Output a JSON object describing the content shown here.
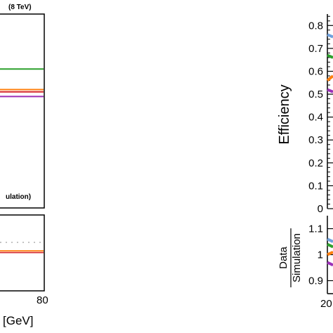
{
  "chart_data": [
    {
      "type": "line",
      "panel": "left-upper",
      "annotation_energy": "(8 TeV)",
      "annotation_sim": "ulation)",
      "series": [
        {
          "color": "#2ca02c",
          "values": [
            0.61,
            0.61
          ]
        },
        {
          "color": "#ff7f0e",
          "values": [
            0.52,
            0.52
          ]
        },
        {
          "color": "#d62728",
          "values": [
            0.51,
            0.51
          ]
        },
        {
          "color": "#9b30b8",
          "values": [
            0.49,
            0.49
          ]
        }
      ]
    },
    {
      "type": "line",
      "panel": "left-lower",
      "xlabel": "[GeV]",
      "xtick_last": "80",
      "series": [
        {
          "color": "#ff7f0e",
          "values": [
            1.0,
            1.0
          ]
        },
        {
          "color": "#d62728",
          "values": [
            1.0,
            1.0
          ]
        }
      ]
    },
    {
      "type": "line",
      "panel": "right-upper",
      "ylabel": "Efficiency",
      "ylim": [
        0,
        0.85
      ],
      "yticks": [
        "0",
        "0.1",
        "0.2",
        "0.3",
        "0.4",
        "0.5",
        "0.6",
        "0.7",
        "0.8"
      ],
      "series": [
        {
          "color": "#6fa0dc",
          "values": [
            0.76,
            0.75
          ]
        },
        {
          "color": "#2ca02c",
          "values": [
            0.67,
            0.66
          ]
        },
        {
          "color": "#ff7f0e",
          "values": [
            0.56,
            0.58
          ]
        },
        {
          "color": "#9b30b8",
          "values": [
            0.52,
            0.51
          ]
        }
      ]
    },
    {
      "type": "line",
      "panel": "right-lower",
      "ylabel_numerator": "Data",
      "ylabel_denominator": "Simulation",
      "ylim": [
        0.85,
        1.15
      ],
      "yticks": [
        "0.9",
        "1",
        "1.1"
      ],
      "xtick_first": "20",
      "series": [
        {
          "color": "#6fa0dc",
          "values": [
            1.06,
            1.05
          ]
        },
        {
          "color": "#2ca02c",
          "values": [
            1.04,
            1.03
          ]
        },
        {
          "color": "#ff7f0e",
          "values": [
            1.0,
            1.01
          ]
        },
        {
          "color": "#9b30b8",
          "values": [
            0.97,
            0.96
          ]
        }
      ]
    }
  ]
}
